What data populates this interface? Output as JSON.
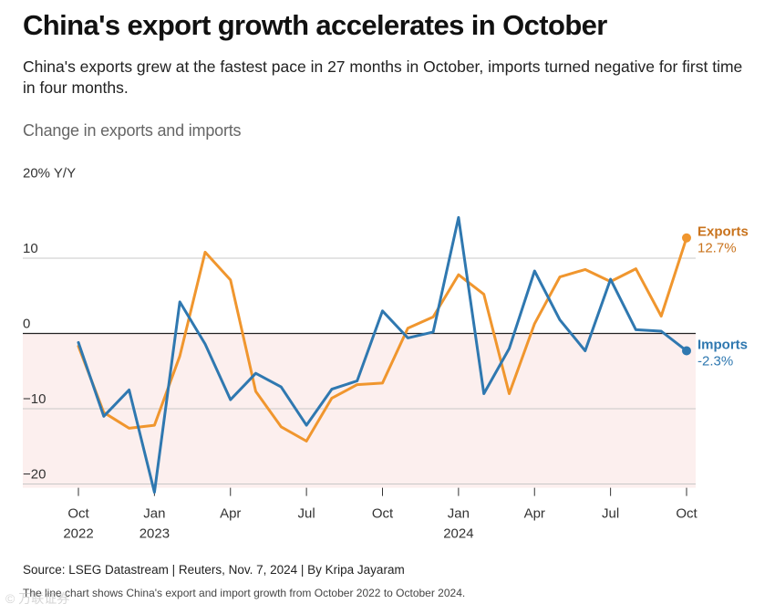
{
  "title": "China's export growth accelerates in October",
  "subtitle": "China's exports grew at the fastest pace in 27 months in October, imports turned negative for first time in four months.",
  "chart_heading": "Change in exports and imports",
  "source": "Source: LSEG Datastream | Reuters, Nov. 7, 2024 | By Kripa Jayaram",
  "description": "The line chart shows China's export and import growth from October 2022 to October 2024.",
  "watermark": "© 万联证券",
  "colors": {
    "exports": "#f0962e",
    "imports": "#2f78b0",
    "exports_label": "#c9731d",
    "imports_label": "#2f78b0",
    "negative_band": "#fcefee"
  },
  "chart_data": {
    "type": "line",
    "title": "Change in exports and imports",
    "ylabel": "% Y/Y",
    "ylim": [
      -20.5,
      20
    ],
    "yticks": [
      {
        "value": 20,
        "label": "20% Y/Y"
      },
      {
        "value": 10,
        "label": "10"
      },
      {
        "value": 0,
        "label": "0"
      },
      {
        "value": -10,
        "label": "−10"
      },
      {
        "value": -20,
        "label": "−20"
      }
    ],
    "xticks": [
      {
        "index": 0,
        "month": "Oct",
        "year": "2022"
      },
      {
        "index": 3,
        "month": "Jan",
        "year": "2023"
      },
      {
        "index": 6,
        "month": "Apr",
        "year": ""
      },
      {
        "index": 9,
        "month": "Jul",
        "year": ""
      },
      {
        "index": 12,
        "month": "Oct",
        "year": ""
      },
      {
        "index": 15,
        "month": "Jan",
        "year": "2024"
      },
      {
        "index": 18,
        "month": "Apr",
        "year": ""
      },
      {
        "index": 21,
        "month": "Jul",
        "year": ""
      },
      {
        "index": 24,
        "month": "Oct",
        "year": ""
      }
    ],
    "x": [
      "Oct 2022",
      "Nov 2022",
      "Dec 2022",
      "Jan 2023",
      "Feb 2023",
      "Mar 2023",
      "Apr 2023",
      "May 2023",
      "Jun 2023",
      "Jul 2023",
      "Aug 2023",
      "Sep 2023",
      "Oct 2023",
      "Nov 2023",
      "Dec 2023",
      "Jan 2024",
      "Feb 2024",
      "Mar 2024",
      "Apr 2024",
      "May 2024",
      "Jun 2024",
      "Jul 2024",
      "Aug 2024",
      "Sep 2024",
      "Oct 2024"
    ],
    "series": [
      {
        "name": "Exports",
        "end_label": "12.7%",
        "values": [
          -1.7,
          -10.5,
          -12.6,
          -12.2,
          -3.0,
          10.8,
          7.1,
          -7.7,
          -12.4,
          -14.3,
          -8.6,
          -6.8,
          -6.6,
          0.7,
          2.2,
          7.8,
          5.2,
          -8.0,
          1.3,
          7.5,
          8.5,
          6.9,
          8.6,
          2.3,
          12.7
        ]
      },
      {
        "name": "Imports",
        "end_label": "-2.3%",
        "values": [
          -1.2,
          -11.0,
          -7.5,
          -21.1,
          4.2,
          -1.4,
          -8.8,
          -5.3,
          -7.1,
          -12.2,
          -7.4,
          -6.3,
          3.0,
          -0.6,
          0.2,
          15.4,
          -8.0,
          -2.0,
          8.3,
          1.8,
          -2.3,
          7.2,
          0.5,
          0.3,
          -2.3
        ]
      }
    ]
  }
}
